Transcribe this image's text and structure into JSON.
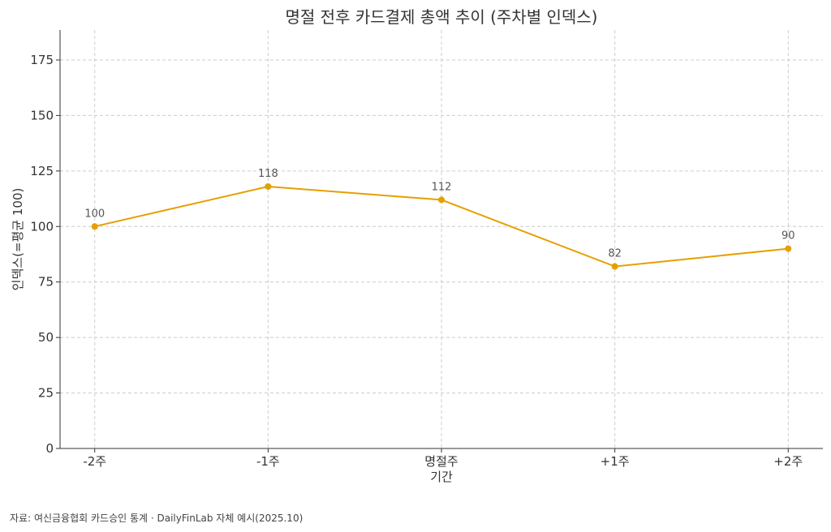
{
  "chart_data": {
    "type": "line",
    "title": "명절 전후 카드결제 총액 추이 (주차별 인덱스)",
    "xlabel": "기간",
    "ylabel": "인덱스(=평균 100)",
    "categories": [
      "-2주",
      "-1주",
      "명절주",
      "+1주",
      "+2주"
    ],
    "values": [
      100,
      118,
      112,
      82,
      90
    ],
    "data_labels": [
      "100",
      "118",
      "112",
      "82",
      "90"
    ],
    "ylim": [
      0,
      188.5
    ],
    "yticks": [
      0,
      25,
      50,
      75,
      100,
      125,
      150,
      175
    ],
    "grid": true,
    "line_color": "#E69F00"
  },
  "footnote": "자료: 여신금융협회 카드승인 통계 · DailyFinLab 자체 예시(2025.10)"
}
